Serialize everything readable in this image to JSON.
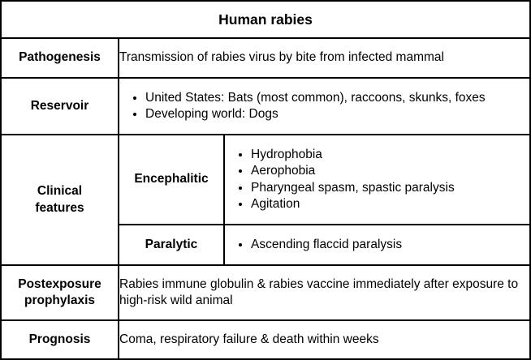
{
  "title": "Human rabies",
  "rows": {
    "pathogenesis": {
      "label": "Pathogenesis",
      "text": "Transmission of rabies virus by bite from infected mammal"
    },
    "reservoir": {
      "label": "Reservoir",
      "bullets": [
        "United States: Bats (most common), raccoons, skunks, foxes",
        "Developing world: Dogs"
      ]
    },
    "clinical": {
      "label_line1": "Clinical",
      "label_line2": "features",
      "encephalitic": {
        "label": "Encephalitic",
        "bullets": [
          "Hydrophobia",
          "Aerophobia",
          "Pharyngeal spasm, spastic paralysis",
          "Agitation"
        ]
      },
      "paralytic": {
        "label": "Paralytic",
        "bullets": [
          "Ascending flaccid paralysis"
        ]
      }
    },
    "postexposure": {
      "label_line1": "Postexposure",
      "label_line2": "prophylaxis",
      "text": "Rabies immune globulin & rabies vaccine immediately after exposure to high-risk wild animal"
    },
    "prognosis": {
      "label": "Prognosis",
      "text": "Coma, respiratory failure & death within weeks"
    }
  }
}
